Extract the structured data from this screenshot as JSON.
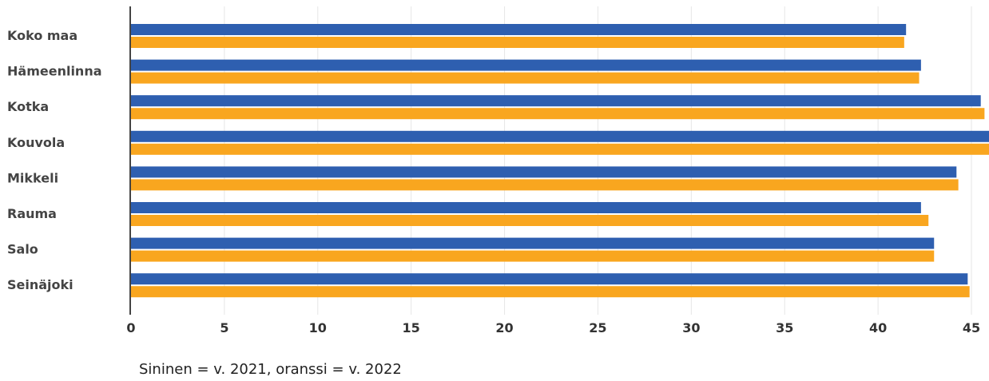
{
  "caption": "Sininen = v. 2021, oranssi = v. 2022",
  "colors": {
    "series_2021": "#2e5fb0",
    "series_2022": "#f9a61f",
    "axis": "#444444",
    "grid": "#e6e6e6"
  },
  "chart_data": {
    "type": "bar",
    "orientation": "horizontal",
    "categories": [
      "Koko maa",
      "Hämeenlinna",
      "Kotka",
      "Kouvola",
      "Mikkeli",
      "Rauma",
      "Salo",
      "Seinäjoki"
    ],
    "series": [
      {
        "values": [
          41.5,
          42.3,
          45.5,
          46.0,
          44.2,
          42.3,
          43.0,
          44.8
        ],
        "color": "#2e5fb0"
      },
      {
        "values": [
          41.4,
          42.2,
          45.7,
          46.0,
          44.3,
          42.7,
          43.0,
          44.9
        ],
        "color": "#f9a61f"
      }
    ],
    "xticks": [
      "0",
      "5",
      "10",
      "15",
      "20",
      "25",
      "30",
      "35",
      "40",
      "45"
    ],
    "xlim": [
      0,
      46
    ],
    "grid": true,
    "xlabel": "",
    "ylabel": "",
    "title": ""
  }
}
